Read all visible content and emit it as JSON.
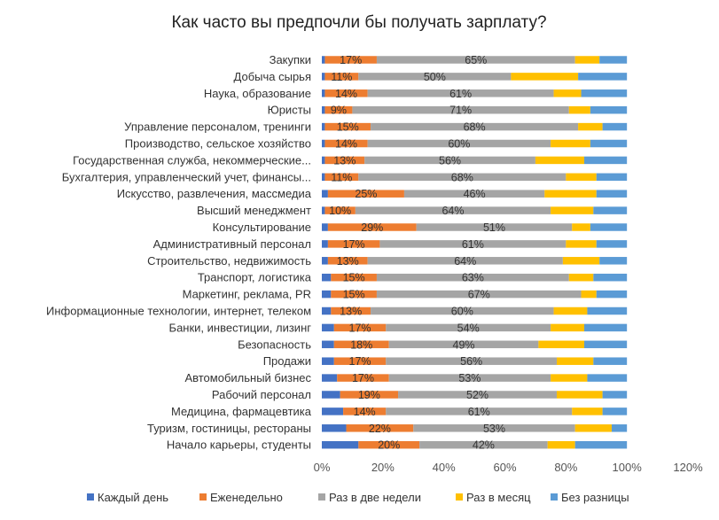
{
  "chart_data": {
    "type": "bar",
    "orientation": "horizontal",
    "stacked": true,
    "title": "Как часто вы предпочли бы получать зарплату?",
    "xlim": [
      0,
      120
    ],
    "xticks": [
      "0%",
      "20%",
      "40%",
      "60%",
      "80%",
      "100%",
      "120%"
    ],
    "xtick_values": [
      0,
      20,
      40,
      60,
      80,
      100,
      120
    ],
    "grid": false,
    "legend_position": "bottom",
    "categories": [
      "Закупки",
      "Добыча сырья",
      "Наука, образование",
      "Юристы",
      "Управление персоналом, тренинги",
      "Производство, сельское хозяйство",
      "Государственная служба, некоммерческие...",
      "Бухгалтерия, управленческий учет, финансы...",
      "Искусство, развлечения, массмедиа",
      "Высший менеджмент",
      "Консультирование",
      "Административный персонал",
      "Строительство, недвижимость",
      "Транспорт, логистика",
      "Маркетинг, реклама, PR",
      "Информационные технологии, интернет, телеком",
      "Банки, инвестиции, лизинг",
      "Безопасность",
      "Продажи",
      "Автомобильный бизнес",
      "Рабочий персонал",
      "Медицина, фармацевтика",
      "Туризм, гостиницы, рестораны",
      "Начало карьеры, студенты"
    ],
    "series": [
      {
        "name": "Каждый день",
        "color": "#4472C4",
        "values": [
          1,
          1,
          1,
          1,
          1,
          1,
          1,
          1,
          2,
          1,
          2,
          2,
          2,
          3,
          3,
          3,
          4,
          4,
          4,
          5,
          6,
          7,
          8,
          12
        ]
      },
      {
        "name": "Еженедельно",
        "color": "#ED7D31",
        "values": [
          17,
          11,
          14,
          9,
          15,
          14,
          13,
          11,
          25,
          10,
          29,
          17,
          13,
          15,
          15,
          13,
          17,
          18,
          17,
          17,
          19,
          14,
          22,
          20
        ]
      },
      {
        "name": "Раз в две недели",
        "color": "#A5A5A5",
        "values": [
          65,
          50,
          61,
          71,
          68,
          60,
          56,
          68,
          46,
          64,
          51,
          61,
          64,
          63,
          67,
          60,
          54,
          49,
          56,
          53,
          52,
          61,
          53,
          42
        ]
      },
      {
        "name": "Раз в месяц",
        "color": "#FFC000",
        "values": [
          8,
          22,
          9,
          7,
          8,
          13,
          16,
          10,
          17,
          14,
          6,
          10,
          12,
          8,
          5,
          11,
          11,
          15,
          12,
          12,
          15,
          10,
          12,
          9
        ]
      },
      {
        "name": "Без разницы",
        "color": "#5B9BD5",
        "values": [
          9,
          16,
          15,
          12,
          8,
          12,
          14,
          10,
          10,
          11,
          12,
          10,
          9,
          11,
          10,
          13,
          14,
          14,
          11,
          13,
          8,
          8,
          5,
          17
        ]
      }
    ],
    "data_labels": [
      [
        "17%",
        "65%"
      ],
      [
        "11%",
        "50%"
      ],
      [
        "14%",
        "61%"
      ],
      [
        "9%",
        "71%"
      ],
      [
        "15%",
        "68%"
      ],
      [
        "14%",
        "60%"
      ],
      [
        "13%",
        "56%"
      ],
      [
        "11%",
        "68%"
      ],
      [
        "25%",
        "46%"
      ],
      [
        "10%",
        "64%"
      ],
      [
        "29%",
        "51%"
      ],
      [
        "17%",
        "61%"
      ],
      [
        "13%",
        "64%"
      ],
      [
        "15%",
        "63%"
      ],
      [
        "15%",
        "67%"
      ],
      [
        "13%",
        "60%"
      ],
      [
        "17%",
        "54%"
      ],
      [
        "18%",
        "49%"
      ],
      [
        "17%",
        "56%"
      ],
      [
        "17%",
        "53%"
      ],
      [
        "19%",
        "52%"
      ],
      [
        "14%",
        "61%"
      ],
      [
        "22%",
        "53%"
      ],
      [
        "20%",
        "42%"
      ]
    ]
  }
}
